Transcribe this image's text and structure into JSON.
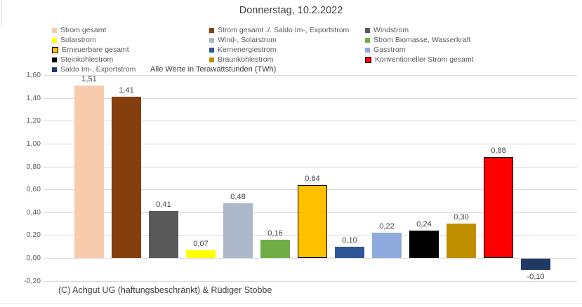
{
  "page": {
    "title": "Donnerstag, 10.2.2022",
    "note": "Alle Werte in Terawattstunden (TWh)",
    "footer": "(C) Achgut UG (haftungsbeschränkt) & Rüdiger Stobbe"
  },
  "colors": {
    "gridline": "#D9D9D9",
    "axis_text": "#595959",
    "label_text": "#404040",
    "background": "#FFFFFF"
  },
  "chart_data": {
    "type": "bar",
    "title": "Donnerstag, 10.2.2022",
    "note": "Alle Werte in Terawattstunden (TWh)",
    "unit": "TWh",
    "ylim": [
      -0.2,
      1.6
    ],
    "ytick_step": 0.2,
    "grid": true,
    "legend_position": "top",
    "legend_columns": 3,
    "yticks": [
      {
        "v": 1.6,
        "label": "1,60"
      },
      {
        "v": 1.4,
        "label": "1,40"
      },
      {
        "v": 1.2,
        "label": "1,20"
      },
      {
        "v": 1.0,
        "label": "1,00"
      },
      {
        "v": 0.8,
        "label": "0,80"
      },
      {
        "v": 0.6,
        "label": "0,60"
      },
      {
        "v": 0.4,
        "label": "0,40"
      },
      {
        "v": 0.2,
        "label": "0,20"
      },
      {
        "v": 0.0,
        "label": "0,00"
      },
      {
        "v": -0.2,
        "label": "-0,20"
      }
    ],
    "series": [
      {
        "name": "Strom gesamt",
        "value": 1.51,
        "label": "1,51",
        "color": "#F8CBAD",
        "border": null
      },
      {
        "name": "Strom gesamt ./. Saldo Im-, Exportstrom",
        "value": 1.41,
        "label": "1,41",
        "color": "#853E0E",
        "border": null
      },
      {
        "name": "Windstrom",
        "value": 0.41,
        "label": "0,41",
        "color": "#595959",
        "border": null
      },
      {
        "name": "Solarstrom",
        "value": 0.07,
        "label": "0,07",
        "color": "#FFFF00",
        "border": null
      },
      {
        "name": "Wind-, Solarstrom",
        "value": 0.48,
        "label": "0,48",
        "color": "#ADB9CA",
        "border": null
      },
      {
        "name": "Strom Biomasse, Wasserkraft",
        "value": 0.16,
        "label": "0,16",
        "color": "#70AD47",
        "border": null
      },
      {
        "name": "Erneuerbare gesamt",
        "value": 0.64,
        "label": "0,64",
        "color": "#FFC000",
        "border": "#000000"
      },
      {
        "name": "Kernenergiestrom",
        "value": 0.1,
        "label": "0,10",
        "color": "#2F5597",
        "border": null
      },
      {
        "name": "Gasstrom",
        "value": 0.22,
        "label": "0,22",
        "color": "#8FAADC",
        "border": null
      },
      {
        "name": "Steinkohlestrom",
        "value": 0.24,
        "label": "0,24",
        "color": "#000000",
        "border": null
      },
      {
        "name": "Braunkohlestrom",
        "value": 0.3,
        "label": "0,30",
        "color": "#BF8F00",
        "border": null
      },
      {
        "name": "Konventioneller Strom gesamt",
        "value": 0.88,
        "label": "0,88",
        "color": "#FF0000",
        "border": "#000000"
      },
      {
        "name": "Saldo Im-, Exportstrom",
        "value": -0.1,
        "label": "-0,10",
        "color": "#1F3864",
        "border": null
      }
    ]
  }
}
